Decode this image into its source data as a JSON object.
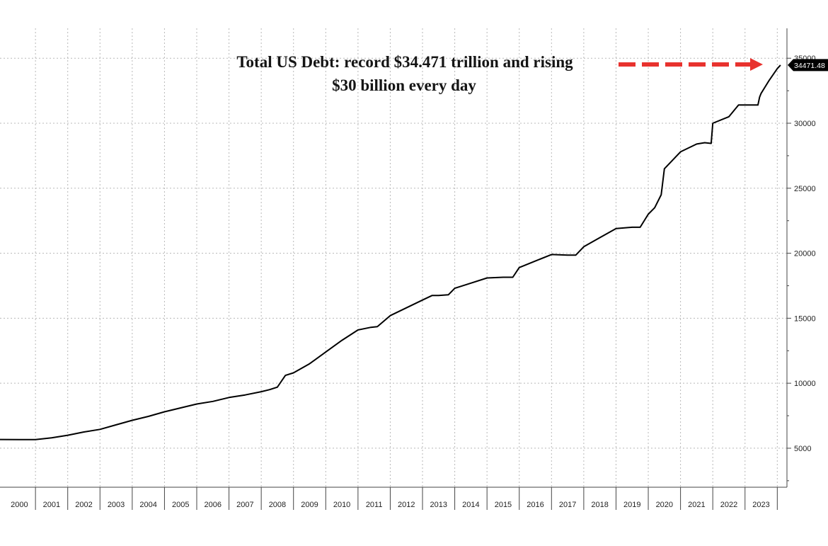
{
  "chart_data": {
    "type": "line",
    "title": "",
    "xlabel": "",
    "ylabel": "",
    "x_tick_labels": [
      "2000",
      "2001",
      "2002",
      "2003",
      "2004",
      "2005",
      "2006",
      "2007",
      "2008",
      "2009",
      "2010",
      "2011",
      "2012",
      "2013",
      "2014",
      "2015",
      "2016",
      "2017",
      "2018",
      "2019",
      "2020",
      "2021",
      "2022",
      "2023"
    ],
    "y_ticks": [
      5000,
      10000,
      15000,
      20000,
      25000,
      30000,
      35000
    ],
    "y_tick_labels": [
      "5000",
      "10000",
      "15000",
      "20000",
      "25000",
      "30000",
      "35000"
    ],
    "xlim": [
      1999.9,
      2024.3
    ],
    "ylim": [
      2000,
      37300
    ],
    "grid": true,
    "series": [
      {
        "name": "Total US Debt",
        "color": "#000000",
        "x": [
          1999.9,
          2000.5,
          2001.0,
          2001.5,
          2002.0,
          2002.5,
          2003.0,
          2003.5,
          2004.0,
          2004.5,
          2005.0,
          2005.5,
          2006.0,
          2006.5,
          2007.0,
          2007.5,
          2008.0,
          2008.25,
          2008.5,
          2008.75,
          2009.0,
          2009.5,
          2010.0,
          2010.5,
          2011.0,
          2011.4,
          2011.6,
          2012.0,
          2012.5,
          2013.0,
          2013.3,
          2013.5,
          2013.8,
          2014.0,
          2014.5,
          2015.0,
          2015.5,
          2015.8,
          2016.0,
          2016.5,
          2017.0,
          2017.5,
          2017.75,
          2018.0,
          2018.5,
          2019.0,
          2019.5,
          2019.75,
          2020.0,
          2020.2,
          2020.4,
          2020.5,
          2021.0,
          2021.5,
          2021.75,
          2021.95,
          2022.0,
          2022.5,
          2022.8,
          2023.0,
          2023.4,
          2023.45,
          2023.5,
          2023.75,
          2024.0,
          2024.1
        ],
        "values": [
          5670,
          5660,
          5660,
          5800,
          6000,
          6250,
          6450,
          6800,
          7150,
          7450,
          7800,
          8100,
          8400,
          8600,
          8900,
          9100,
          9350,
          9500,
          9700,
          10600,
          10800,
          11500,
          12400,
          13300,
          14100,
          14300,
          14350,
          15200,
          15800,
          16400,
          16750,
          16750,
          16800,
          17300,
          17700,
          18100,
          18150,
          18150,
          18900,
          19400,
          19900,
          19850,
          19850,
          20500,
          21200,
          21900,
          22000,
          22000,
          23000,
          23500,
          24500,
          26500,
          27800,
          28400,
          28500,
          28450,
          30000,
          30500,
          31400,
          31400,
          31400,
          32000,
          32300,
          33300,
          34200,
          34471.48
        ]
      }
    ],
    "last_value_label": "34471.48",
    "annotations": [
      "Total US Debt: record $34.471 trillion and rising",
      "$30 billion every day"
    ]
  },
  "colors": {
    "line": "#000000",
    "arrow": "#e8322e",
    "grid": "#b8b8b8",
    "value_badge": "#000000",
    "value_badge_text": "#ffffff"
  }
}
